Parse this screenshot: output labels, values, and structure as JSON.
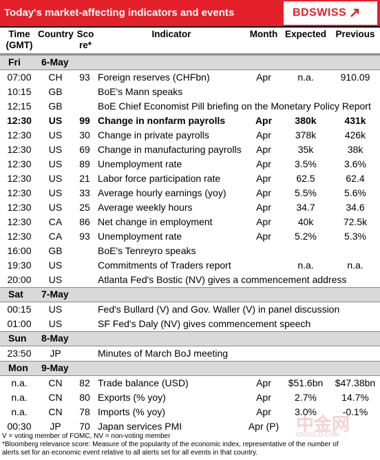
{
  "header": {
    "title": "Today's market-affecting indicators and events",
    "logo": "BDSWISS"
  },
  "columns": [
    [
      "Time",
      "(GMT)"
    ],
    [
      "Country"
    ],
    [
      "Sco",
      "re*"
    ],
    [
      "Indicator"
    ],
    [
      "Month"
    ],
    [
      "Expected"
    ],
    [
      "Previous"
    ]
  ],
  "days": [
    {
      "day": "Fri",
      "date": "6-May",
      "bold_row": 3,
      "rows": [
        [
          "07:00",
          "CH",
          "93",
          "Foreign reserves (CHFbn)",
          "Apr",
          "n.a.",
          "910.09"
        ],
        [
          "10:15",
          "GB",
          null,
          "BoE's Mann speaks",
          null,
          null,
          null
        ],
        [
          "12;15",
          "GB",
          null,
          "BoE Chief Economist Pill briefing on the Monetary Policy Report",
          null,
          null,
          null
        ],
        [
          "12:30",
          "US",
          "99",
          "Change in nonfarm payrolls",
          "Apr",
          "380k",
          "431k"
        ],
        [
          "12:30",
          "US",
          "30",
          "Change in private payrolls",
          "Apr",
          "378k",
          "426k"
        ],
        [
          "12:30",
          "US",
          "69",
          "Change in manufacturing payrolls",
          "Apr",
          "35k",
          "38k"
        ],
        [
          "12:30",
          "US",
          "89",
          "Unemployment rate",
          "Apr",
          "3.5%",
          "3.6%"
        ],
        [
          "12:30",
          "US",
          "21",
          "Labor force participation rate",
          "Apr",
          "62.5",
          "62.4"
        ],
        [
          "12:30",
          "US",
          "33",
          "Average hourly earnings (yoy)",
          "Apr",
          "5.5%",
          "5.6%"
        ],
        [
          "12:30",
          "US",
          "25",
          "Average weekly hours",
          "Apr",
          "34.7",
          "34.6"
        ],
        [
          "12:30",
          "CA",
          "86",
          "Net change in employment",
          "Apr",
          "40k",
          "72.5k"
        ],
        [
          "12:30",
          "CA",
          "93",
          "Unemployment rate",
          "Apr",
          "5.2%",
          "5.3%"
        ],
        [
          "16:00",
          "GB",
          null,
          "BoE's Tenreyro speaks",
          null,
          null,
          null
        ],
        [
          "19:30",
          "US",
          null,
          "Commitments of Traders  report",
          null,
          "n.a.",
          "n.a."
        ],
        [
          "20:00",
          "US",
          null,
          "Atlanta Fed's Bostic (NV) gives a commencement address",
          null,
          null,
          null
        ]
      ]
    },
    {
      "day": "Sat",
      "date": "7-May",
      "rows": [
        [
          "00:15",
          "US",
          null,
          "Fed's Bullard (V) and Gov. Waller (V) in panel discussion",
          null,
          null,
          null
        ],
        [
          "01:00",
          "US",
          null,
          "SF Fed's Daly (NV) gives commencement speech",
          null,
          null,
          null
        ]
      ]
    },
    {
      "day": "Sun",
      "date": "8-May",
      "rows": [
        [
          "23:50",
          "JP",
          null,
          "Minutes of March BoJ meeting",
          null,
          null,
          null
        ]
      ]
    },
    {
      "day": "Mon",
      "date": "9-May",
      "rows": [
        [
          "n.a.",
          "CN",
          "82",
          "Trade balance (USD)",
          "Apr",
          "$51.6bn",
          "$47.38bn"
        ],
        [
          "n.a.",
          "CN",
          "80",
          "Exports (% yoy)",
          "Apr",
          "2.7%",
          "14.7%"
        ],
        [
          "n.a.",
          "CN",
          "78",
          "Imports (% yoy)",
          "Apr",
          "3.0%",
          "-0.1%"
        ],
        [
          "00:30",
          "JP",
          "70",
          "Japan services PMI",
          "Apr (P)",
          null,
          null
        ]
      ]
    }
  ],
  "footnotes": [
    "V = voting member of FOMC, NV = non-voting member",
    "*Bloomberg relevance score:  Measure of the popularity of the economic index, representative of the number of",
    "alerts set for an economic event relative to all alerts set for all events in that country."
  ],
  "watermark": [
    "中金网",
    "CNGOLD.COM"
  ]
}
